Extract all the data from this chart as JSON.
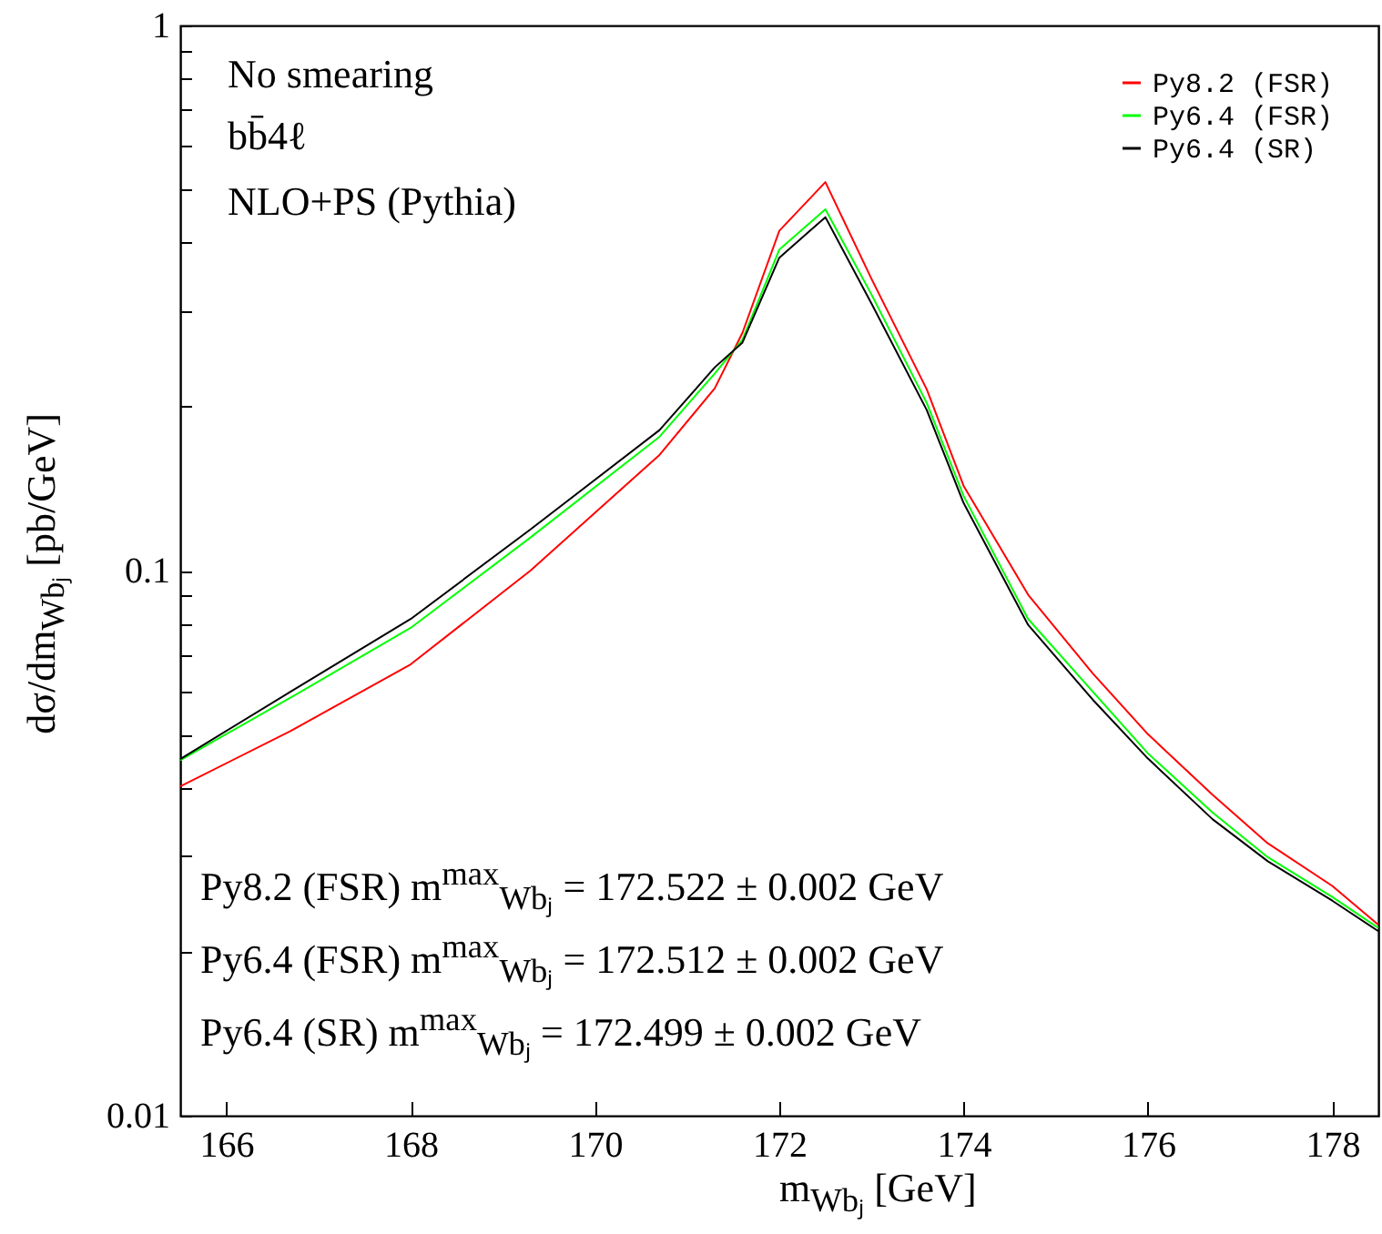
{
  "chart_data": {
    "type": "line",
    "xlabel": "m$_{Wbⱼ}$ [GeV]",
    "ylabel": "dσ/dm$_{Wbⱼ}$ [pb/GeV]",
    "annotations": [
      "No smearing",
      "bb̄4ℓ",
      "NLO+PS (Pythia)",
      "Py8.2 (FSR) m$^{max}$$_{Wbⱼ}$ = 172.522 ± 0.002 GeV",
      "Py6.4 (FSR) m$^{max}$$_{Wbⱼ}$ = 172.512 ± 0.002 GeV",
      "Py6.4 (SR) m$^{max}$$_{Wbⱼ}$ = 172.499 ± 0.002 GeV"
    ],
    "x": [
      165.5,
      166.7,
      168.0,
      169.3,
      170.7,
      171.3,
      171.6,
      172.0,
      172.5,
      173.0,
      173.6,
      174.0,
      174.7,
      175.4,
      176.0,
      176.7,
      177.3,
      178.0,
      178.5
    ],
    "series": [
      {
        "name": "Py8.2 (FSR)",
        "color": "#ff0000",
        "values": [
          0.0402,
          0.0508,
          0.0673,
          0.1,
          0.163,
          0.216,
          0.273,
          0.42,
          0.516,
          0.343,
          0.215,
          0.143,
          0.0903,
          0.0648,
          0.0501,
          0.0388,
          0.0316,
          0.0264,
          0.0224
        ]
      },
      {
        "name": "Py6.4 (FSR)",
        "color": "#00ff00",
        "values": [
          0.0449,
          0.0585,
          0.0785,
          0.115,
          0.176,
          0.23,
          0.265,
          0.388,
          0.46,
          0.321,
          0.203,
          0.137,
          0.0815,
          0.06,
          0.0462,
          0.036,
          0.0298,
          0.0252,
          0.0221
        ]
      },
      {
        "name": "Py6.4 (SR)",
        "color": "#000000",
        "values": [
          0.0451,
          0.06,
          0.0815,
          0.119,
          0.181,
          0.236,
          0.262,
          0.375,
          0.445,
          0.309,
          0.197,
          0.133,
          0.0795,
          0.058,
          0.0452,
          0.035,
          0.0293,
          0.0248,
          0.0218
        ]
      }
    ],
    "xlim": [
      165.5,
      178.5
    ],
    "xticks": [
      166,
      168,
      170,
      172,
      174,
      176,
      178
    ],
    "ylim": [
      0.01,
      1
    ],
    "yticks": [
      0.01,
      {
        "value": 0.02,
        "label": null
      },
      {
        "value": 0.03,
        "label": null
      },
      {
        "value": 0.04,
        "label": null
      },
      {
        "value": 0.05,
        "label": null
      },
      {
        "value": 0.06,
        "label": null
      },
      {
        "value": 0.07,
        "label": null
      },
      {
        "value": 0.08,
        "label": null
      },
      {
        "value": 0.09,
        "label": null
      },
      0.1,
      {
        "value": 0.2,
        "label": null
      },
      {
        "value": 0.3,
        "label": null
      },
      {
        "value": 0.4,
        "label": null
      },
      {
        "value": 0.5,
        "label": null
      },
      {
        "value": 0.6,
        "label": null
      },
      {
        "value": 0.7,
        "label": null
      },
      {
        "value": 0.8,
        "label": null
      },
      {
        "value": 0.9,
        "label": null
      },
      1
    ],
    "log": "y",
    "grid": false,
    "legend": "top right",
    "marker": "none",
    "line_style": "solid"
  }
}
